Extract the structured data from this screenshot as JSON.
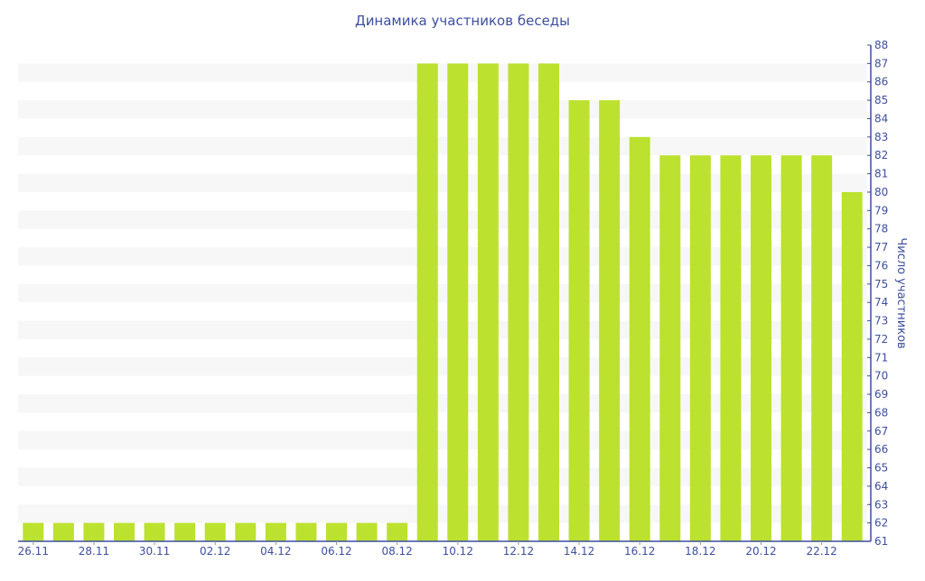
{
  "chart_data": {
    "type": "bar",
    "title": "Динамика участников беседы",
    "xlabel": "",
    "ylabel": "Число участников",
    "ylim": [
      61,
      88
    ],
    "y_axis_position": "right",
    "grid": "alternating horizontal bands",
    "categories": [
      "26.11",
      "27.11",
      "28.11",
      "29.11",
      "30.11",
      "01.12",
      "02.12",
      "03.12",
      "04.12",
      "05.12",
      "06.12",
      "07.12",
      "08.12",
      "09.12",
      "10.12",
      "11.12",
      "12.12",
      "13.12",
      "14.12",
      "15.12",
      "16.12",
      "17.12",
      "18.12",
      "19.12",
      "20.12",
      "21.12",
      "22.12",
      "23.12"
    ],
    "x_tick_labels": [
      "26.11",
      "28.11",
      "30.11",
      "02.12",
      "04.12",
      "06.12",
      "08.12",
      "10.12",
      "12.12",
      "14.12",
      "16.12",
      "18.12",
      "20.12",
      "22.12"
    ],
    "values": [
      62,
      62,
      62,
      62,
      62,
      62,
      62,
      62,
      62,
      62,
      62,
      62,
      62,
      87,
      87,
      87,
      87,
      87,
      85,
      85,
      83,
      82,
      82,
      82,
      82,
      82,
      82,
      80
    ],
    "colors": {
      "bar": "#bce12f",
      "axis": "#3d4fa0",
      "band": "#f7f7f7"
    }
  }
}
